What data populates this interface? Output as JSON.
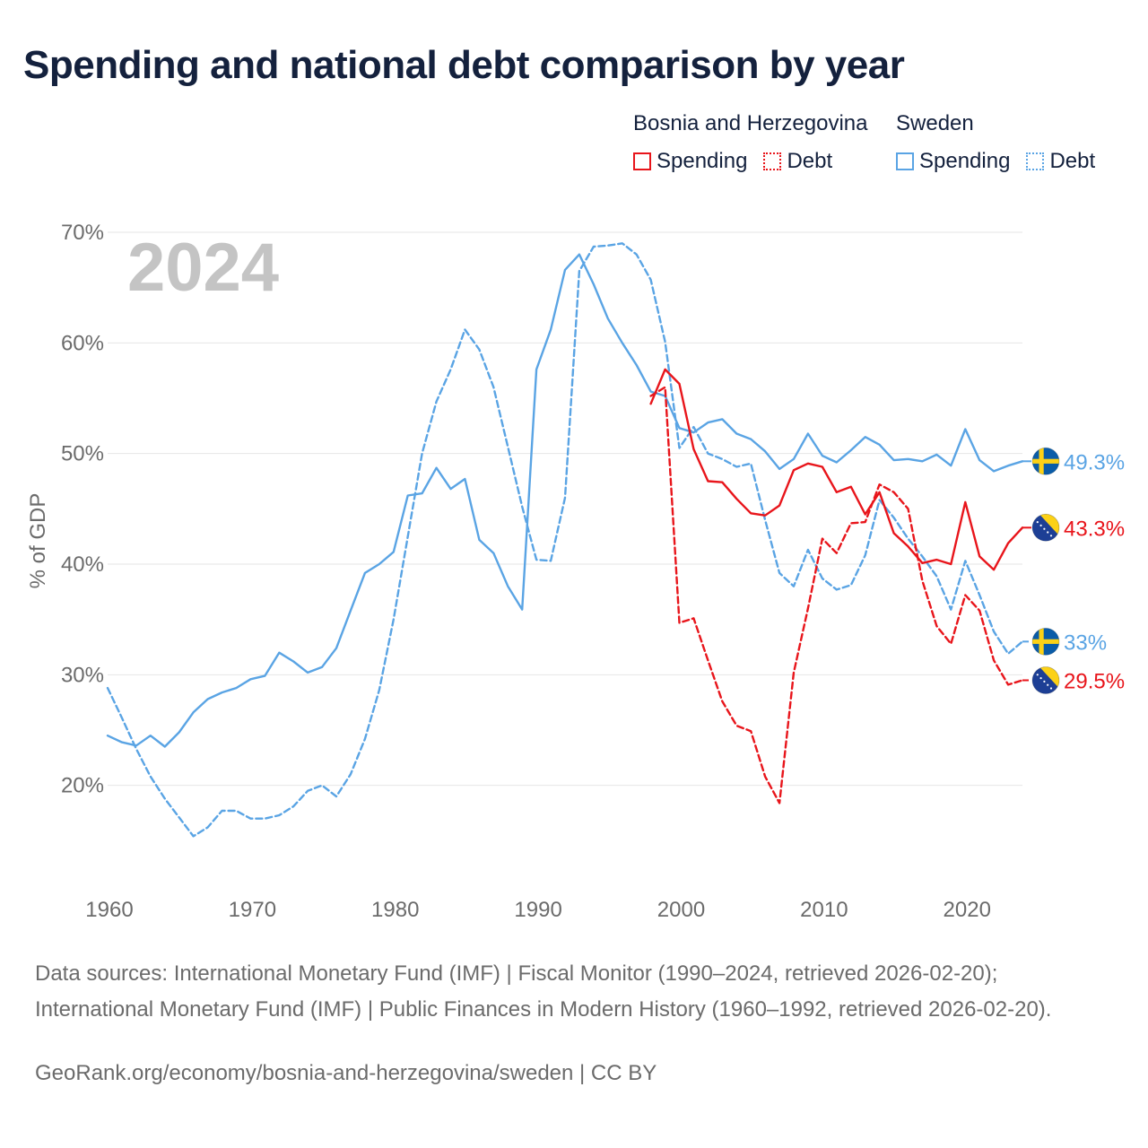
{
  "title": "Spending and national debt comparison by year",
  "legend": {
    "groups": [
      {
        "name": "Bosnia and Herzegovina",
        "color": "#e8151b",
        "items": [
          {
            "label": "Spending",
            "style": "solid"
          },
          {
            "label": "Debt",
            "style": "dotted"
          }
        ]
      },
      {
        "name": "Sweden",
        "color": "#5aa4e4",
        "items": [
          {
            "label": "Spending",
            "style": "solid"
          },
          {
            "label": "Debt",
            "style": "dotted"
          }
        ]
      }
    ]
  },
  "sources": {
    "text": "Data sources: International Monetary Fund (IMF) | Fiscal Monitor (1990–2024, retrieved 2026-02-20); International Monetary Fund (IMF) | Public Finances in Modern History (1960–1992, retrieved 2026-02-20).",
    "credit": "GeoRank.org/economy/bosnia-and-herzegovina/sweden | CC BY"
  },
  "chart_data": {
    "type": "line",
    "title": "Spending and national debt comparison by year",
    "year_label": "2024",
    "xlabel": "",
    "ylabel": "% of GDP",
    "xlim": [
      1960,
      2024
    ],
    "ylim": [
      10,
      70
    ],
    "x_ticks": [
      1960,
      1970,
      1980,
      1990,
      2000,
      2010,
      2020
    ],
    "y_ticks": [
      20,
      30,
      40,
      50,
      60,
      70
    ],
    "y_tick_labels": [
      "20%",
      "30%",
      "40%",
      "50%",
      "60%",
      "70%"
    ],
    "grid": true,
    "series": [
      {
        "name": "Sweden Spending",
        "color": "#5aa4e4",
        "dash": false,
        "end_label": "49.3%",
        "flag": "sweden",
        "x": [
          1960,
          1961,
          1962,
          1963,
          1964,
          1965,
          1966,
          1967,
          1968,
          1969,
          1970,
          1971,
          1972,
          1973,
          1974,
          1975,
          1976,
          1977,
          1978,
          1979,
          1980,
          1981,
          1982,
          1983,
          1984,
          1985,
          1986,
          1987,
          1988,
          1989,
          1990,
          1991,
          1992,
          1993,
          1994,
          1995,
          1996,
          1997,
          1998,
          1999,
          2000,
          2001,
          2002,
          2003,
          2004,
          2005,
          2006,
          2007,
          2008,
          2009,
          2010,
          2011,
          2012,
          2013,
          2014,
          2015,
          2016,
          2017,
          2018,
          2019,
          2020,
          2021,
          2022,
          2023,
          2024
        ],
        "values": [
          24.5,
          23.9,
          23.6,
          24.5,
          23.5,
          24.8,
          26.6,
          27.8,
          28.4,
          28.8,
          29.6,
          29.9,
          32.0,
          31.2,
          30.2,
          30.7,
          32.4,
          35.8,
          39.2,
          40.0,
          41.1,
          46.2,
          46.4,
          48.7,
          46.8,
          47.7,
          42.2,
          41.0,
          38.0,
          35.9,
          57.6,
          61.2,
          66.6,
          68.0,
          65.3,
          62.2,
          60.0,
          58.0,
          55.6,
          55.2,
          52.3,
          51.9,
          52.8,
          53.1,
          51.8,
          51.3,
          50.2,
          48.6,
          49.5,
          51.8,
          49.8,
          49.2,
          50.3,
          51.5,
          50.8,
          49.4,
          49.5,
          49.3,
          49.9,
          48.9,
          52.2,
          49.4,
          48.4,
          48.9,
          49.3
        ]
      },
      {
        "name": "Sweden Debt",
        "color": "#5aa4e4",
        "dash": true,
        "end_label": "33%",
        "flag": "sweden",
        "x": [
          1960,
          1961,
          1962,
          1963,
          1964,
          1965,
          1966,
          1967,
          1968,
          1969,
          1970,
          1971,
          1972,
          1973,
          1974,
          1975,
          1976,
          1977,
          1978,
          1979,
          1980,
          1981,
          1982,
          1983,
          1984,
          1985,
          1986,
          1987,
          1988,
          1989,
          1990,
          1991,
          1992,
          1993,
          1994,
          1995,
          1996,
          1997,
          1998,
          1999,
          2000,
          2001,
          2002,
          2003,
          2004,
          2005,
          2006,
          2007,
          2008,
          2009,
          2010,
          2011,
          2012,
          2013,
          2014,
          2015,
          2016,
          2017,
          2018,
          2019,
          2020,
          2021,
          2022,
          2023,
          2024
        ],
        "values": [
          28.8,
          26.1,
          23.3,
          20.8,
          18.8,
          17.1,
          15.4,
          16.2,
          17.7,
          17.7,
          17.0,
          17.0,
          17.3,
          18.1,
          19.5,
          20.0,
          19.0,
          21.0,
          24.2,
          28.6,
          35.0,
          42.5,
          50.0,
          54.7,
          57.6,
          61.2,
          59.4,
          56.0,
          50.6,
          45.2,
          40.4,
          40.3,
          46.0,
          66.5,
          68.7,
          68.8,
          69.0,
          68.0,
          65.7,
          60.1,
          50.5,
          52.4,
          50.0,
          49.5,
          48.8,
          49.1,
          44.0,
          39.2,
          38.0,
          41.3,
          38.7,
          37.7,
          38.1,
          40.8,
          45.8,
          44.2,
          42.3,
          40.7,
          38.9,
          35.9,
          40.3,
          37.2,
          33.9,
          31.9,
          33.0
        ]
      },
      {
        "name": "Bosnia and Herzegovina Spending",
        "color": "#e8151b",
        "dash": false,
        "end_label": "43.3%",
        "flag": "bosnia",
        "x": [
          1998,
          1999,
          2000,
          2001,
          2002,
          2003,
          2004,
          2005,
          2006,
          2007,
          2008,
          2009,
          2010,
          2011,
          2012,
          2013,
          2014,
          2015,
          2016,
          2017,
          2018,
          2019,
          2020,
          2021,
          2022,
          2023,
          2024
        ],
        "values": [
          54.5,
          57.6,
          56.3,
          50.4,
          47.5,
          47.4,
          45.9,
          44.6,
          44.4,
          45.3,
          48.5,
          49.1,
          48.8,
          46.5,
          47.0,
          44.5,
          46.5,
          42.8,
          41.6,
          40.1,
          40.4,
          40.0,
          45.6,
          40.7,
          39.5,
          41.9,
          43.3
        ]
      },
      {
        "name": "Bosnia and Herzegovina Debt",
        "color": "#e8151b",
        "dash": true,
        "end_label": "29.5%",
        "flag": "bosnia",
        "x": [
          1998,
          1999,
          2000,
          2001,
          2002,
          2003,
          2004,
          2005,
          2006,
          2007,
          2008,
          2009,
          2010,
          2011,
          2012,
          2013,
          2014,
          2015,
          2016,
          2017,
          2018,
          2019,
          2020,
          2021,
          2022,
          2023,
          2024
        ],
        "values": [
          55.2,
          56.0,
          34.7,
          35.1,
          31.3,
          27.6,
          25.4,
          24.9,
          20.8,
          18.4,
          30.2,
          36.0,
          42.3,
          41.0,
          43.7,
          43.8,
          47.2,
          46.5,
          45.0,
          38.5,
          34.4,
          32.8,
          37.2,
          35.8,
          31.3,
          29.1,
          29.5
        ]
      }
    ]
  }
}
